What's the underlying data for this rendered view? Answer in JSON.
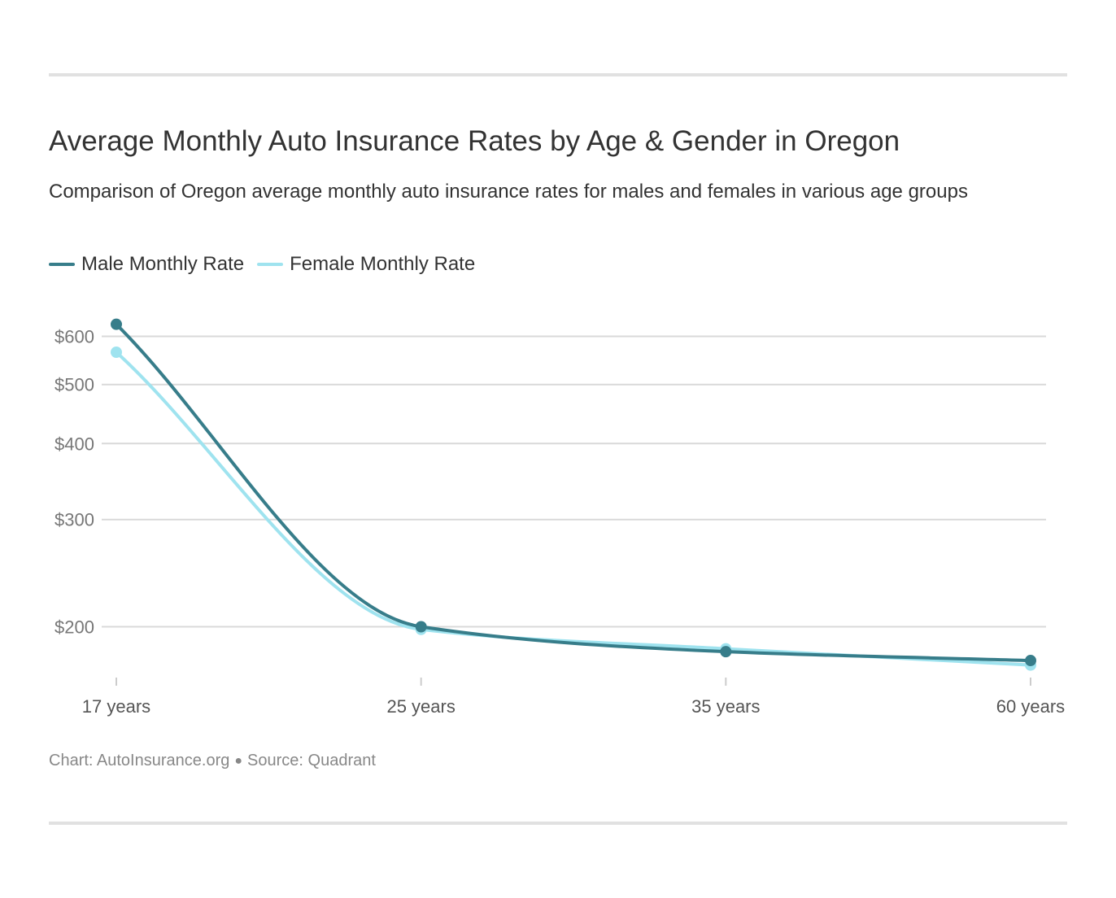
{
  "header": {
    "title": "Average Monthly Auto Insurance Rates by Age & Gender in Oregon",
    "subtitle": "Comparison of Oregon average monthly auto insurance rates for males and females in various age groups"
  },
  "footer": {
    "chart_credit": "Chart: AutoInsurance.org",
    "source": "Source: Quadrant"
  },
  "colors": {
    "male": "#377d8a",
    "female": "#9fe3ef",
    "grid": "#d9d9d9",
    "axis_text": "#777777",
    "tick_text": "#555555"
  },
  "chart_data": {
    "type": "line",
    "title": "Average Monthly Auto Insurance Rates by Age & Gender in Oregon",
    "subtitle": "Comparison of Oregon average monthly auto insurance rates for males and females in various age groups",
    "categories": [
      "17 years",
      "25 years",
      "35 years",
      "60 years"
    ],
    "series": [
      {
        "name": "Male Monthly Rate",
        "color": "#377d8a",
        "values": [
          628,
          200,
          182,
          176
        ]
      },
      {
        "name": "Female Monthly Rate",
        "color": "#9fe3ef",
        "values": [
          565,
          198,
          184,
          173
        ]
      }
    ],
    "yscale": "log",
    "yticks": [
      200,
      300,
      400,
      500,
      600
    ],
    "ytick_labels": [
      "$200",
      "$300",
      "$400",
      "$500",
      "$600"
    ],
    "legend": "top-left",
    "grid": true,
    "xlabel": "",
    "ylabel": ""
  }
}
